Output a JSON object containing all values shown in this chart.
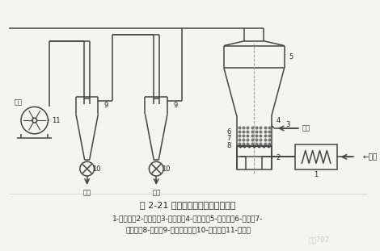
{
  "title": "图 2-21 载体喷雾流化干燥器流程图",
  "caption_line1": "1-加热器；2-进气室；3-进料管；4-干燥室；5-沉降室；6-载体；7-",
  "caption_line2": "检修孔；8-孔板；9-旋风分离器；10-出料阀；11-引风机",
  "watermark": "化工707",
  "label_kongjing": "←空气",
  "label_liaiye": "料液",
  "label_feiji": "废气",
  "label_chengpin": "成品",
  "bg_color": "#f5f5f0",
  "line_color": "#444444",
  "text_color": "#222222",
  "figsize": [
    4.7,
    3.11
  ],
  "dpi": 100
}
